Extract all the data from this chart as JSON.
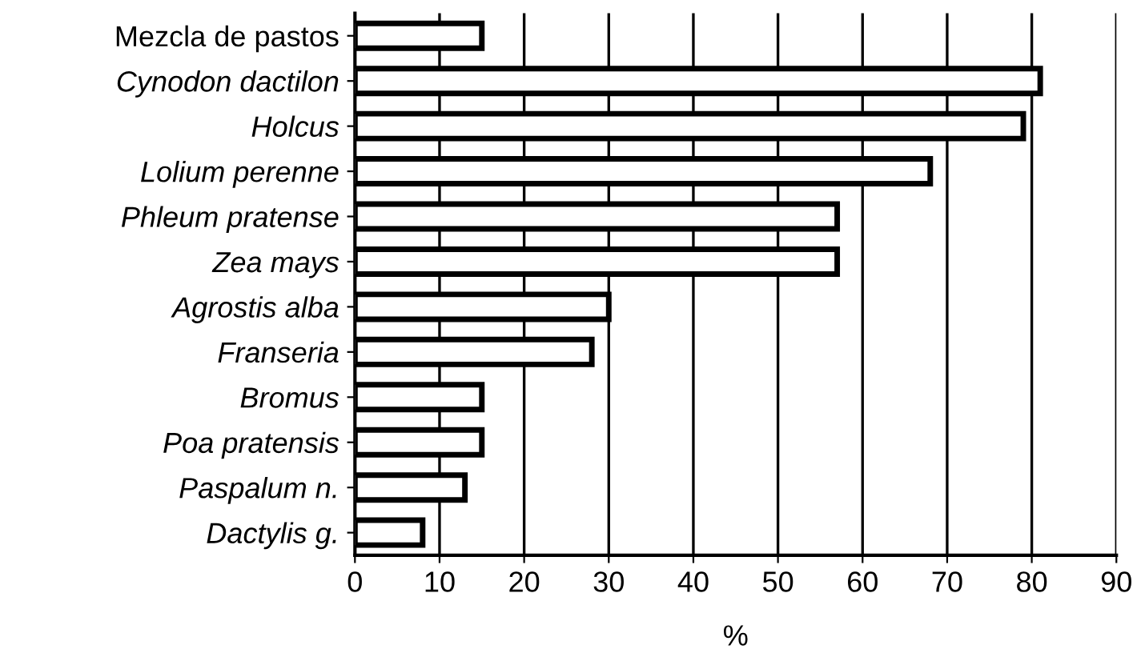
{
  "chart_data": {
    "type": "bar",
    "orientation": "horizontal",
    "xlabel": "%",
    "categories": [
      "Mezcla de pastos",
      "Cynodon dactilon",
      "Holcus",
      "Lolium perenne",
      "Phleum pratense",
      "Zea mays",
      "Agrostis alba",
      "Franseria",
      "Bromus",
      "Poa pratensis",
      "Paspalum n.",
      "Dactylis g."
    ],
    "values": [
      15,
      81,
      79,
      68,
      57,
      57,
      30,
      28,
      15,
      15,
      13,
      8
    ],
    "color": "#ffffff",
    "xlim": [
      0,
      90
    ],
    "xticks": [
      0,
      10,
      20,
      30,
      40,
      50,
      60,
      70,
      80,
      90
    ],
    "grid": "x"
  }
}
